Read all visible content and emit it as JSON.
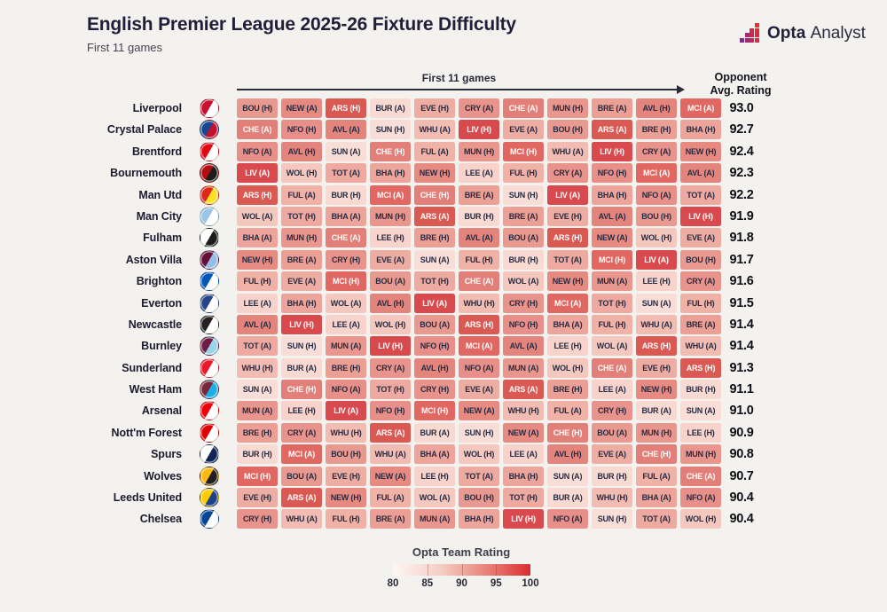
{
  "header": {
    "title": "English Premier League 2025-26 Fixture Difficulty",
    "subtitle": "First 11 games",
    "brand": {
      "bold": "Opta",
      "regular": "Analyst"
    }
  },
  "axis": {
    "games_label": "First 11 games",
    "rating_header": "Opponent\nAvg. Rating"
  },
  "legend": {
    "title": "Opta Team Rating",
    "ticks": [
      "80",
      "85",
      "90",
      "95",
      "100"
    ],
    "gradient_start": "#fdf7f4",
    "gradient_end": "#d92c31"
  },
  "brand_mark_colors": [
    "#7c2e82",
    "#9c2b72",
    "#bc2a5e",
    "#d9294b",
    "#a42b6e",
    "#c62955",
    "#e02a42",
    "#d02950",
    "#e52d39",
    "#e93229"
  ],
  "opponent_styles": {
    "LIV": {
      "bg": "#d84a4e",
      "text": "#ffffff"
    },
    "ARS": {
      "bg": "#db5953",
      "text": "#ffffff"
    },
    "MCI": {
      "bg": "#e16862",
      "text": "#ffffff"
    },
    "CHE": {
      "bg": "#e17f78",
      "text": "#ffffff"
    },
    "AVL": {
      "bg": "#e4857d",
      "text": "#272b42"
    },
    "NEW": {
      "bg": "#e68a82",
      "text": "#272b42"
    },
    "NFO": {
      "bg": "#e78f88",
      "text": "#272b42"
    },
    "CRY": {
      "bg": "#e8938b",
      "text": "#272b42"
    },
    "MUN": {
      "bg": "#e9978e",
      "text": "#272b42"
    },
    "BOU": {
      "bg": "#e99a90",
      "text": "#272b42"
    },
    "BRE": {
      "bg": "#eb9f95",
      "text": "#272b42"
    },
    "BHA": {
      "bg": "#eca49b",
      "text": "#272b42"
    },
    "TOT": {
      "bg": "#eeaaa0",
      "text": "#272b42"
    },
    "EVE": {
      "bg": "#eeada3",
      "text": "#272b42"
    },
    "FUL": {
      "bg": "#f0b1a7",
      "text": "#272b42"
    },
    "WHU": {
      "bg": "#f2bcb2",
      "text": "#272b42"
    },
    "WOL": {
      "bg": "#f5c8bf",
      "text": "#272b42"
    },
    "LEE": {
      "bg": "#f7d3cb",
      "text": "#272b42"
    },
    "BUR": {
      "bg": "#f8dad3",
      "text": "#272b42"
    },
    "SUN": {
      "bg": "#f9ded8",
      "text": "#272b42"
    }
  },
  "chart_data": {
    "type": "heatmap",
    "title": "English Premier League 2025-26 Fixture Difficulty",
    "subtitle": "First 11 games",
    "x_axis_label": "First 11 games",
    "value_column_label": "Opponent Avg. Rating",
    "color_scale": {
      "label": "Opta Team Rating",
      "min": 80,
      "max": 100
    },
    "rows": [
      {
        "team": "Liverpool",
        "crest": [
          "#c8102e",
          "#ffffff"
        ],
        "fixtures": [
          "BOU (H)",
          "NEW (A)",
          "ARS (H)",
          "BUR (A)",
          "EVE (H)",
          "CRY (A)",
          "CHE (A)",
          "MUN (H)",
          "BRE (A)",
          "AVL (H)",
          "MCI (A)"
        ],
        "avg": "93.0"
      },
      {
        "team": "Crystal Palace",
        "crest": [
          "#1b458f",
          "#c4122e"
        ],
        "fixtures": [
          "CHE (A)",
          "NFO (H)",
          "AVL (A)",
          "SUN (H)",
          "WHU (A)",
          "LIV (H)",
          "EVE (A)",
          "BOU (H)",
          "ARS (A)",
          "BRE (H)",
          "BHA (H)"
        ],
        "avg": "92.7"
      },
      {
        "team": "Brentford",
        "crest": [
          "#e30613",
          "#ffffff"
        ],
        "fixtures": [
          "NFO (A)",
          "AVL (H)",
          "SUN (A)",
          "CHE (H)",
          "FUL (A)",
          "MUN (H)",
          "MCI (H)",
          "WHU (A)",
          "LIV (H)",
          "CRY (A)",
          "NEW (H)"
        ],
        "avg": "92.4"
      },
      {
        "team": "Bournemouth",
        "crest": [
          "#b50e12",
          "#1c1c1b"
        ],
        "fixtures": [
          "LIV (A)",
          "WOL (H)",
          "TOT (A)",
          "BHA (H)",
          "NEW (H)",
          "LEE (A)",
          "FUL (H)",
          "CRY (A)",
          "NFO (H)",
          "MCI (A)",
          "AVL (A)"
        ],
        "avg": "92.3"
      },
      {
        "team": "Man Utd",
        "crest": [
          "#da291c",
          "#fbe122"
        ],
        "fixtures": [
          "ARS (H)",
          "FUL (A)",
          "BUR (H)",
          "MCI (A)",
          "CHE (H)",
          "BRE (A)",
          "SUN (H)",
          "LIV (A)",
          "BHA (H)",
          "NFO (A)",
          "TOT (A)"
        ],
        "avg": "92.2"
      },
      {
        "team": "Man City",
        "crest": [
          "#98c5e9",
          "#ffffff"
        ],
        "fixtures": [
          "WOL (A)",
          "TOT (H)",
          "BHA (A)",
          "MUN (H)",
          "ARS (A)",
          "BUR (H)",
          "BRE (A)",
          "EVE (H)",
          "AVL (A)",
          "BOU (H)",
          "LIV (H)"
        ],
        "avg": "91.9"
      },
      {
        "team": "Fulham",
        "crest": [
          "#ffffff",
          "#1c1c1b"
        ],
        "fixtures": [
          "BHA (A)",
          "MUN (H)",
          "CHE (A)",
          "LEE (H)",
          "BRE (H)",
          "AVL (A)",
          "BOU (A)",
          "ARS (H)",
          "NEW (A)",
          "WOL (H)",
          "EVE (A)"
        ],
        "avg": "91.8"
      },
      {
        "team": "Aston Villa",
        "crest": [
          "#670e36",
          "#95bfe5"
        ],
        "fixtures": [
          "NEW (H)",
          "BRE (A)",
          "CRY (H)",
          "EVE (A)",
          "SUN (A)",
          "FUL (H)",
          "BUR (H)",
          "TOT (A)",
          "MCI (H)",
          "LIV (A)",
          "BOU (H)"
        ],
        "avg": "91.7"
      },
      {
        "team": "Brighton",
        "crest": [
          "#0057b8",
          "#ffffff"
        ],
        "fixtures": [
          "FUL (H)",
          "EVE (A)",
          "MCI (H)",
          "BOU (A)",
          "TOT (H)",
          "CHE (A)",
          "WOL (A)",
          "NEW (H)",
          "MUN (A)",
          "LEE (H)",
          "CRY (A)"
        ],
        "avg": "91.6"
      },
      {
        "team": "Everton",
        "crest": [
          "#274488",
          "#ffffff"
        ],
        "fixtures": [
          "LEE (A)",
          "BHA (H)",
          "WOL (A)",
          "AVL (H)",
          "LIV (A)",
          "WHU (H)",
          "CRY (H)",
          "MCI (A)",
          "TOT (H)",
          "SUN (A)",
          "FUL (H)"
        ],
        "avg": "91.5"
      },
      {
        "team": "Newcastle",
        "crest": [
          "#241f20",
          "#ffffff"
        ],
        "fixtures": [
          "AVL (A)",
          "LIV (H)",
          "LEE (A)",
          "WOL (H)",
          "BOU (A)",
          "ARS (H)",
          "NFO (H)",
          "BHA (A)",
          "FUL (H)",
          "WHU (A)",
          "BRE (A)"
        ],
        "avg": "91.4"
      },
      {
        "team": "Burnley",
        "crest": [
          "#6c1d45",
          "#99d6ea"
        ],
        "fixtures": [
          "TOT (A)",
          "SUN (H)",
          "MUN (A)",
          "LIV (H)",
          "NFO (H)",
          "MCI (A)",
          "AVL (A)",
          "LEE (H)",
          "WOL (A)",
          "ARS (H)",
          "WHU (A)"
        ],
        "avg": "91.4"
      },
      {
        "team": "Sunderland",
        "crest": [
          "#eb172b",
          "#ffffff"
        ],
        "fixtures": [
          "WHU (H)",
          "BUR (A)",
          "BRE (H)",
          "CRY (A)",
          "AVL (H)",
          "NFO (A)",
          "MUN (A)",
          "WOL (H)",
          "CHE (A)",
          "EVE (H)",
          "ARS (H)"
        ],
        "avg": "91.3"
      },
      {
        "team": "West Ham",
        "crest": [
          "#7a263a",
          "#1bb1e7"
        ],
        "fixtures": [
          "SUN (A)",
          "CHE (H)",
          "NFO (A)",
          "TOT (H)",
          "CRY (H)",
          "EVE (A)",
          "ARS (A)",
          "BRE (H)",
          "LEE (A)",
          "NEW (H)",
          "BUR (H)"
        ],
        "avg": "91.1"
      },
      {
        "team": "Arsenal",
        "crest": [
          "#ef0107",
          "#ffffff"
        ],
        "fixtures": [
          "MUN (A)",
          "LEE (H)",
          "LIV (A)",
          "NFO (H)",
          "MCI (H)",
          "NEW (A)",
          "WHU (H)",
          "FUL (A)",
          "CRY (H)",
          "BUR (A)",
          "SUN (A)"
        ],
        "avg": "91.0"
      },
      {
        "team": "Nott'm Forest",
        "crest": [
          "#dd0000",
          "#ffffff"
        ],
        "fixtures": [
          "BRE (H)",
          "CRY (A)",
          "WHU (H)",
          "ARS (A)",
          "BUR (A)",
          "SUN (H)",
          "NEW (A)",
          "CHE (H)",
          "BOU (A)",
          "MUN (H)",
          "LEE (H)"
        ],
        "avg": "90.9"
      },
      {
        "team": "Spurs",
        "crest": [
          "#ffffff",
          "#132257"
        ],
        "fixtures": [
          "BUR (H)",
          "MCI (A)",
          "BOU (H)",
          "WHU (A)",
          "BHA (A)",
          "WOL (H)",
          "LEE (A)",
          "AVL (H)",
          "EVE (A)",
          "CHE (H)",
          "MUN (H)"
        ],
        "avg": "90.8"
      },
      {
        "team": "Wolves",
        "crest": [
          "#fdb913",
          "#231f20"
        ],
        "fixtures": [
          "MCI (H)",
          "BOU (A)",
          "EVE (H)",
          "NEW (A)",
          "LEE (H)",
          "TOT (A)",
          "BHA (H)",
          "SUN (A)",
          "BUR (H)",
          "FUL (A)",
          "CHE (A)"
        ],
        "avg": "90.7"
      },
      {
        "team": "Leeds United",
        "crest": [
          "#ffcd00",
          "#1d428a"
        ],
        "fixtures": [
          "EVE (H)",
          "ARS (A)",
          "NEW (H)",
          "FUL (A)",
          "WOL (A)",
          "BOU (H)",
          "TOT (H)",
          "BUR (A)",
          "WHU (H)",
          "BHA (A)",
          "NFO (A)"
        ],
        "avg": "90.4"
      },
      {
        "team": "Chelsea",
        "crest": [
          "#034694",
          "#ffffff"
        ],
        "fixtures": [
          "CRY (H)",
          "WHU (A)",
          "FUL (H)",
          "BRE (A)",
          "MUN (A)",
          "BHA (H)",
          "LIV (H)",
          "NFO (A)",
          "SUN (H)",
          "TOT (A)",
          "WOL (H)"
        ],
        "avg": "90.4"
      }
    ]
  }
}
